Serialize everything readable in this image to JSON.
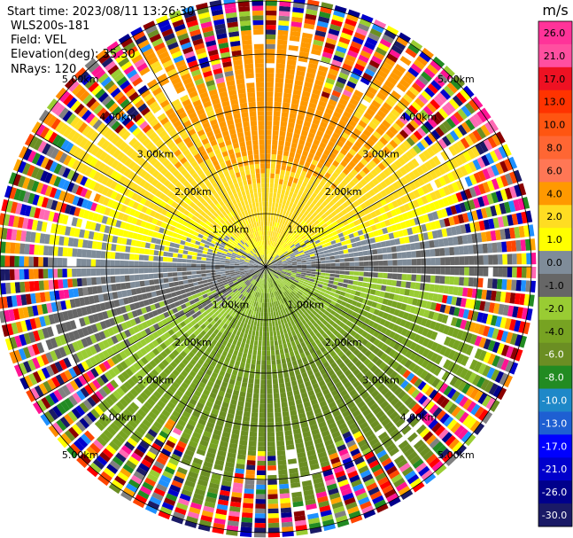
{
  "info": {
    "start_time": "Start time: 2023/08/11 13:26:30",
    "instrument": "WLS200s-181",
    "field": "Field: VEL",
    "elevation": "Elevation(deg): 35.30",
    "nrays": "NRays: 120"
  },
  "chart_data": {
    "type": "heatmap",
    "projection": "polar-ppi",
    "field": "VEL",
    "unit": "m/s",
    "elevation_deg": 35.3,
    "n_rays": 120,
    "range_rings_km": [
      1.0,
      2.0,
      3.0,
      4.0,
      5.0
    ],
    "range_ring_labels": [
      "1.00km",
      "2.00km",
      "3.00km",
      "4.00km",
      "5.00km"
    ],
    "max_range_km": 5.6,
    "colorbar": {
      "ticks": [
        "26.0",
        "21.0",
        "17.0",
        "13.0",
        "10.0",
        "8.0",
        "6.0",
        "4.0",
        "2.0",
        "1.0",
        "0.0",
        "-1.0",
        "-2.0",
        "-4.0",
        "-6.0",
        "-8.0",
        "-10.0",
        "-13.0",
        "-17.0",
        "-21.0",
        "-26.0",
        "-30.0"
      ],
      "bins": [
        {
          "min": 26,
          "max": 30,
          "color": "#ff3399"
        },
        {
          "min": 21,
          "max": 26,
          "color": "#ff4fa0"
        },
        {
          "min": 17,
          "max": 21,
          "color": "#ee1122"
        },
        {
          "min": 13,
          "max": 17,
          "color": "#ff3300"
        },
        {
          "min": 10,
          "max": 13,
          "color": "#ff5511"
        },
        {
          "min": 8,
          "max": 10,
          "color": "#ff6633"
        },
        {
          "min": 6,
          "max": 8,
          "color": "#ff7755"
        },
        {
          "min": 4,
          "max": 6,
          "color": "#ff9900"
        },
        {
          "min": 2,
          "max": 4,
          "color": "#ffdd22"
        },
        {
          "min": 1,
          "max": 2,
          "color": "#ffff00"
        },
        {
          "min": 0,
          "max": 1,
          "color": "#7f8c99"
        },
        {
          "min": -1,
          "max": 0,
          "color": "#666666"
        },
        {
          "min": -2,
          "max": -1,
          "color": "#99cc33"
        },
        {
          "min": -4,
          "max": -2,
          "color": "#77a322"
        },
        {
          "min": -6,
          "max": -4,
          "color": "#6b8e23"
        },
        {
          "min": -8,
          "max": -6,
          "color": "#228b22"
        },
        {
          "min": -10,
          "max": -8,
          "color": "#1e88c8"
        },
        {
          "min": -13,
          "max": -10,
          "color": "#1e5fd2"
        },
        {
          "min": -17,
          "max": -13,
          "color": "#0000ff"
        },
        {
          "min": -21,
          "max": -17,
          "color": "#0000cc"
        },
        {
          "min": -26,
          "max": -21,
          "color": "#00008b"
        },
        {
          "min": -30,
          "max": -26,
          "color": "#1a1a66"
        }
      ]
    },
    "noise_palette": [
      "#ff1493",
      "#0000cd",
      "#00008b",
      "#ff0000",
      "#ffff00",
      "#228b22",
      "#ff8c00",
      "#9acd32",
      "#ff69b4",
      "#808080",
      "#1e90ff",
      "#6b8e23",
      "#8b0000",
      "#ffa500",
      "#1a1a66",
      "#ff4500"
    ]
  }
}
